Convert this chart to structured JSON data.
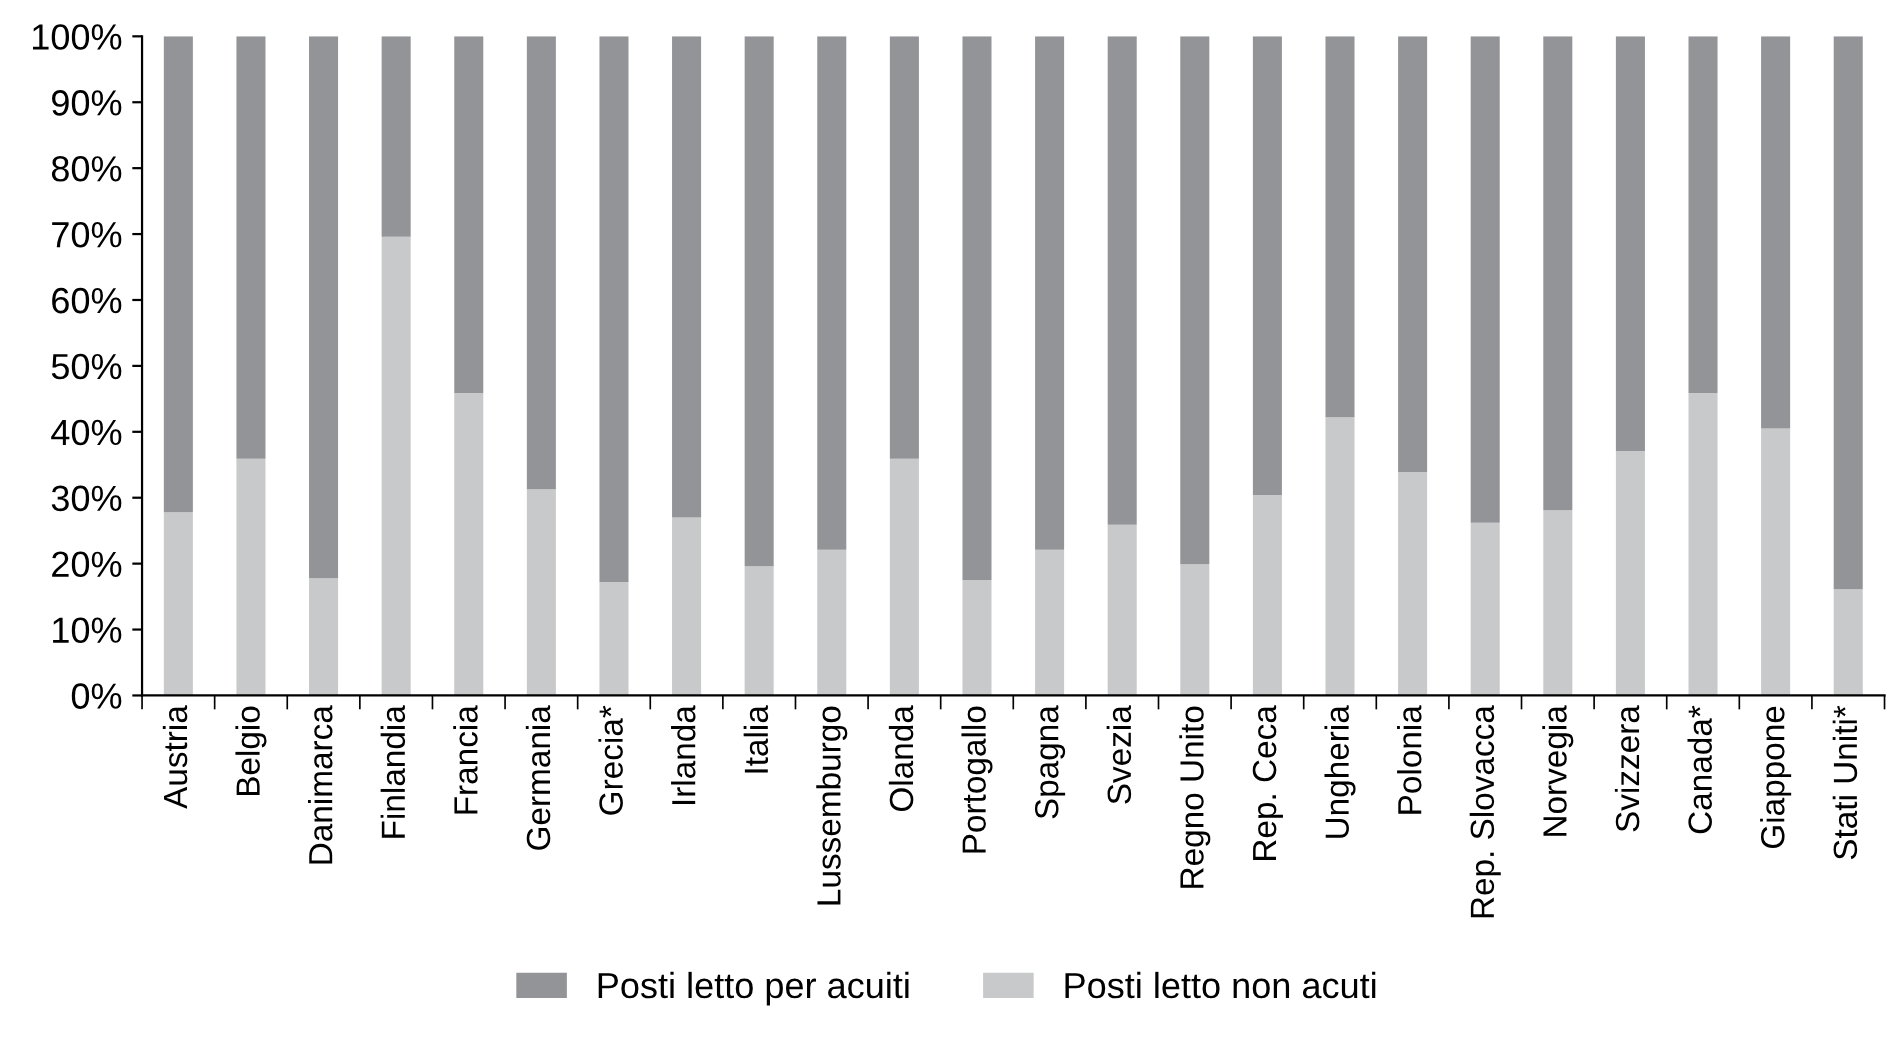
{
  "chart_data": {
    "type": "bar",
    "stacked": true,
    "categories": [
      "Austria",
      "Belgio",
      "Danimarca",
      "Finlandia",
      "Francia",
      "Germania",
      "Grecia*",
      "Irlanda",
      "Italia",
      "Lussemburgo",
      "Olanda",
      "Portogallo",
      "Spagna",
      "Svezia",
      "Regno Unito",
      "Rep. Ceca",
      "Ungheria",
      "Polonia",
      "Rep. Slovacca",
      "Norvegia",
      "Svizzera",
      "Canada*",
      "Giappone",
      "Stati Uniti*"
    ],
    "series": [
      {
        "name": "Posti letto non acuti",
        "color": "#c8c9cb",
        "values": [
          27.8,
          35.9,
          17.8,
          69.6,
          45.9,
          31.3,
          17.2,
          27.0,
          19.6,
          22.1,
          35.9,
          17.5,
          22.1,
          25.9,
          19.9,
          30.4,
          42.2,
          33.9,
          26.2,
          28.1,
          37.1,
          45.9,
          40.5,
          16.1
        ]
      },
      {
        "name": "Posti letto per acuiti",
        "color": "#939498",
        "values": [
          72.2,
          64.1,
          82.2,
          30.4,
          54.1,
          68.7,
          82.8,
          73.0,
          80.4,
          77.9,
          64.1,
          82.5,
          77.9,
          74.1,
          80.1,
          69.6,
          57.8,
          66.1,
          73.8,
          71.9,
          62.9,
          54.1,
          59.5,
          83.9
        ]
      }
    ],
    "ylim": [
      0,
      100
    ],
    "yticks": [
      {
        "value": 0,
        "label": "0%"
      },
      {
        "value": 10,
        "label": "10%"
      },
      {
        "value": 20,
        "label": "20%"
      },
      {
        "value": 30,
        "label": "30%"
      },
      {
        "value": 40,
        "label": "40%"
      },
      {
        "value": 50,
        "label": "50%"
      },
      {
        "value": 60,
        "label": "60%"
      },
      {
        "value": 70,
        "label": "70%"
      },
      {
        "value": 80,
        "label": "80%"
      },
      {
        "value": 90,
        "label": "90%"
      },
      {
        "value": 100,
        "label": "100%"
      }
    ],
    "grid": false,
    "legend": "bottom"
  }
}
